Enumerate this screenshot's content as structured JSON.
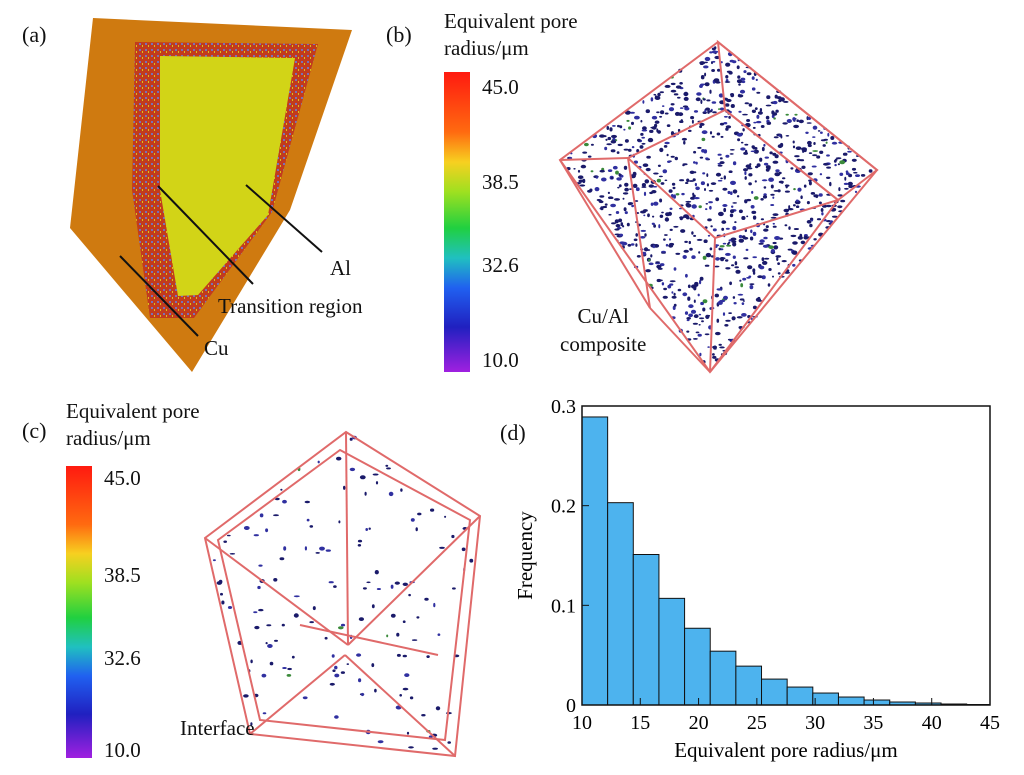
{
  "panels": {
    "a": {
      "label": "(a)",
      "annotations": {
        "al": "Al",
        "transition": "Transition region",
        "cu": "Cu"
      },
      "colors": {
        "cu": "#cf7a10",
        "al": "#d2d417",
        "rim": "#c63a1e"
      }
    },
    "b": {
      "label": "(b)",
      "colorbar": {
        "title_line1": "Equivalent pore",
        "title_line2": "radius/μm",
        "ticks": [
          "45.0",
          "38.5",
          "32.6",
          "10.0"
        ]
      },
      "annotation_line1": "Cu/Al",
      "annotation_line2": "composite"
    },
    "c": {
      "label": "(c)",
      "colorbar": {
        "title_line1": "Equivalent pore",
        "title_line2": "radius/μm",
        "ticks": [
          "45.0",
          "38.5",
          "32.6",
          "10.0"
        ]
      },
      "annotation": "Interface"
    },
    "d": {
      "label": "(d)"
    }
  },
  "chart_data": {
    "type": "bar",
    "xlabel": "Equivalent pore radius/μm",
    "ylabel": "Frequency",
    "xlim": [
      10,
      45
    ],
    "ylim": [
      0,
      0.3
    ],
    "xticks": [
      "10",
      "15",
      "20",
      "25",
      "30",
      "35",
      "40",
      "45"
    ],
    "yticks": [
      "0",
      "0.1",
      "0.2",
      "0.3"
    ],
    "bar_color": "#4db3ee",
    "bin_width": 2.2,
    "bins": [
      10.0,
      12.2,
      14.4,
      16.6,
      18.8,
      21.0,
      23.2,
      25.4,
      27.6,
      29.8,
      32.0,
      34.2,
      36.4,
      38.6,
      40.8,
      43.0
    ],
    "values": [
      0.289,
      0.203,
      0.151,
      0.107,
      0.077,
      0.054,
      0.039,
      0.026,
      0.018,
      0.012,
      0.008,
      0.005,
      0.003,
      0.002,
      0.001,
      0.0005
    ]
  }
}
